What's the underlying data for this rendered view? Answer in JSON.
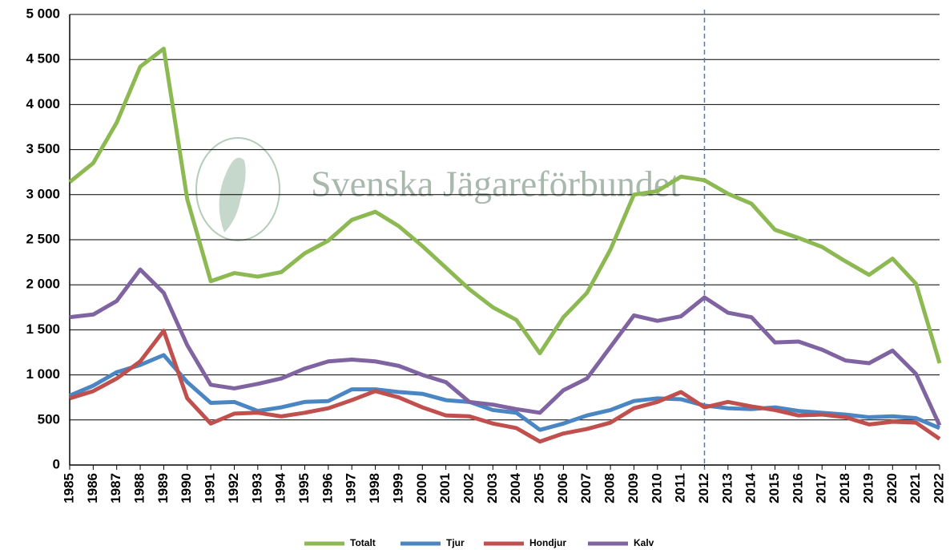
{
  "chart_data": {
    "type": "line",
    "watermark": "Svenska Jägareförbundet",
    "categories": [
      "1985",
      "1986",
      "1987",
      "1988",
      "1989",
      "1990",
      "1991",
      "1992",
      "1993",
      "1994",
      "1995",
      "1996",
      "1997",
      "1998",
      "1999",
      "2000",
      "2001",
      "2002",
      "2003",
      "2004",
      "2005",
      "2006",
      "2007",
      "2008",
      "2009",
      "2010",
      "2011",
      "2012",
      "2013",
      "2014",
      "2015",
      "2016",
      "2017",
      "2018",
      "2019",
      "2020",
      "2021",
      "2022"
    ],
    "series": [
      {
        "name": "Totalt",
        "color": "#8db953",
        "values": [
          3140,
          3350,
          3800,
          4420,
          4620,
          2950,
          2040,
          2130,
          2090,
          2140,
          2350,
          2490,
          2720,
          2810,
          2650,
          2430,
          2190,
          1950,
          1750,
          1610,
          1240,
          1640,
          1910,
          2390,
          3000,
          3040,
          3200,
          3160,
          3010,
          2900,
          2610,
          2520,
          2420,
          2260,
          2110,
          2290,
          2010,
          1130
        ]
      },
      {
        "name": "Tjur",
        "color": "#4a85c4",
        "values": [
          770,
          880,
          1030,
          1110,
          1220,
          920,
          690,
          700,
          600,
          640,
          700,
          710,
          840,
          840,
          810,
          790,
          720,
          700,
          610,
          580,
          390,
          460,
          550,
          610,
          710,
          740,
          730,
          660,
          630,
          620,
          640,
          600,
          580,
          560,
          530,
          540,
          520,
          410
        ]
      },
      {
        "name": "Hondjur",
        "color": "#c0504d",
        "values": [
          740,
          820,
          960,
          1150,
          1490,
          740,
          460,
          570,
          580,
          540,
          580,
          630,
          720,
          820,
          750,
          640,
          550,
          540,
          460,
          410,
          260,
          350,
          400,
          470,
          630,
          700,
          810,
          640,
          700,
          650,
          610,
          550,
          560,
          530,
          450,
          480,
          470,
          290
        ]
      },
      {
        "name": "Kalv",
        "color": "#8064a2",
        "values": [
          1640,
          1670,
          1820,
          2170,
          1910,
          1330,
          890,
          850,
          900,
          960,
          1070,
          1150,
          1170,
          1150,
          1100,
          1000,
          920,
          700,
          670,
          620,
          580,
          830,
          960,
          1310,
          1660,
          1600,
          1650,
          1860,
          1690,
          1640,
          1360,
          1370,
          1280,
          1160,
          1130,
          1270,
          1010,
          440
        ]
      }
    ],
    "ylim": [
      0,
      5000
    ],
    "yticks": [
      0,
      500,
      {
        "value": 1000,
        "label": "1 000"
      },
      {
        "value": 1500,
        "label": "1 500"
      },
      {
        "value": 2000,
        "label": "2 000"
      },
      {
        "value": 2500,
        "label": "2 500"
      },
      {
        "value": 3000,
        "label": "3 000"
      },
      {
        "value": 3500,
        "label": "3 500"
      },
      {
        "value": 4000,
        "label": "4 000"
      },
      {
        "value": 4500,
        "label": "4 500"
      },
      {
        "value": 5000,
        "label": "5 000"
      }
    ],
    "grid": true,
    "reference_line": "2012",
    "legend": "bottom"
  }
}
